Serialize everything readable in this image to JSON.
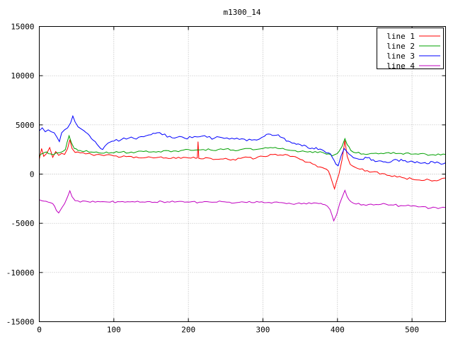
{
  "chart_data": {
    "type": "line",
    "title": "m1300_14",
    "xlabel": "",
    "ylabel": "",
    "xlim": [
      0,
      545
    ],
    "ylim": [
      -15000,
      15000
    ],
    "x_ticks": [
      0,
      100,
      200,
      300,
      400,
      500
    ],
    "y_ticks": [
      -15000,
      -10000,
      -5000,
      0,
      5000,
      10000,
      15000
    ],
    "grid": true,
    "legend_position": "top-right",
    "background_color": "#ffffff",
    "border_color": "#000000",
    "grid_color": "#9a9a9a",
    "series": [
      {
        "name": "line 1",
        "color": "#ff0000",
        "noise": 120,
        "points": [
          [
            0,
            1500
          ],
          [
            3,
            2600
          ],
          [
            6,
            1800
          ],
          [
            10,
            2100
          ],
          [
            14,
            2700
          ],
          [
            18,
            1700
          ],
          [
            22,
            2300
          ],
          [
            26,
            1900
          ],
          [
            30,
            2100
          ],
          [
            34,
            2000
          ],
          [
            38,
            2600
          ],
          [
            41,
            3500
          ],
          [
            44,
            2600
          ],
          [
            48,
            2200
          ],
          [
            55,
            2150
          ],
          [
            62,
            2050
          ],
          [
            70,
            2000
          ],
          [
            80,
            2000
          ],
          [
            90,
            1950
          ],
          [
            100,
            1850
          ],
          [
            110,
            1750
          ],
          [
            120,
            1800
          ],
          [
            130,
            1750
          ],
          [
            140,
            1650
          ],
          [
            150,
            1700
          ],
          [
            160,
            1700
          ],
          [
            170,
            1650
          ],
          [
            180,
            1700
          ],
          [
            190,
            1600
          ],
          [
            200,
            1650
          ],
          [
            210,
            1600
          ],
          [
            212,
            1650
          ],
          [
            213,
            3300
          ],
          [
            214,
            1600
          ],
          [
            220,
            1550
          ],
          [
            230,
            1600
          ],
          [
            240,
            1500
          ],
          [
            250,
            1600
          ],
          [
            260,
            1500
          ],
          [
            270,
            1600
          ],
          [
            280,
            1700
          ],
          [
            290,
            1600
          ],
          [
            300,
            1800
          ],
          [
            310,
            2000
          ],
          [
            320,
            1900
          ],
          [
            330,
            2000
          ],
          [
            340,
            1800
          ],
          [
            350,
            1500
          ],
          [
            360,
            1200
          ],
          [
            370,
            950
          ],
          [
            380,
            650
          ],
          [
            388,
            300
          ],
          [
            393,
            -800
          ],
          [
            396,
            -1500
          ],
          [
            399,
            -700
          ],
          [
            402,
            0
          ],
          [
            406,
            1400
          ],
          [
            410,
            3400
          ],
          [
            413,
            1800
          ],
          [
            417,
            1000
          ],
          [
            422,
            750
          ],
          [
            430,
            500
          ],
          [
            440,
            350
          ],
          [
            450,
            250
          ],
          [
            460,
            50
          ],
          [
            470,
            -150
          ],
          [
            480,
            -300
          ],
          [
            490,
            -400
          ],
          [
            500,
            -500
          ],
          [
            510,
            -600
          ],
          [
            520,
            -500
          ],
          [
            530,
            -650
          ],
          [
            540,
            -450
          ],
          [
            545,
            -400
          ]
        ]
      },
      {
        "name": "line 2",
        "color": "#00a000",
        "noise": 110,
        "points": [
          [
            0,
            1800
          ],
          [
            5,
            2100
          ],
          [
            10,
            2250
          ],
          [
            15,
            2050
          ],
          [
            20,
            2000
          ],
          [
            25,
            2150
          ],
          [
            30,
            2250
          ],
          [
            35,
            2500
          ],
          [
            40,
            3900
          ],
          [
            43,
            3200
          ],
          [
            47,
            2600
          ],
          [
            52,
            2400
          ],
          [
            60,
            2300
          ],
          [
            70,
            2250
          ],
          [
            80,
            2150
          ],
          [
            90,
            2250
          ],
          [
            100,
            2150
          ],
          [
            110,
            2250
          ],
          [
            120,
            2150
          ],
          [
            130,
            2250
          ],
          [
            140,
            2300
          ],
          [
            150,
            2250
          ],
          [
            160,
            2300
          ],
          [
            170,
            2400
          ],
          [
            180,
            2350
          ],
          [
            190,
            2400
          ],
          [
            200,
            2500
          ],
          [
            210,
            2450
          ],
          [
            220,
            2500
          ],
          [
            230,
            2450
          ],
          [
            240,
            2500
          ],
          [
            250,
            2550
          ],
          [
            260,
            2450
          ],
          [
            270,
            2500
          ],
          [
            280,
            2600
          ],
          [
            290,
            2500
          ],
          [
            300,
            2600
          ],
          [
            310,
            2700
          ],
          [
            320,
            2600
          ],
          [
            330,
            2500
          ],
          [
            340,
            2400
          ],
          [
            350,
            2300
          ],
          [
            360,
            2250
          ],
          [
            370,
            2300
          ],
          [
            380,
            2200
          ],
          [
            388,
            2050
          ],
          [
            393,
            1850
          ],
          [
            397,
            2000
          ],
          [
            402,
            2300
          ],
          [
            406,
            2800
          ],
          [
            410,
            3600
          ],
          [
            413,
            3000
          ],
          [
            418,
            2400
          ],
          [
            425,
            2150
          ],
          [
            435,
            2050
          ],
          [
            445,
            2100
          ],
          [
            455,
            2050
          ],
          [
            465,
            2150
          ],
          [
            475,
            2200
          ],
          [
            485,
            2100
          ],
          [
            495,
            2150
          ],
          [
            505,
            2050
          ],
          [
            515,
            2100
          ],
          [
            525,
            1950
          ],
          [
            535,
            2050
          ],
          [
            545,
            2000
          ]
        ]
      },
      {
        "name": "line 3",
        "color": "#0000ff",
        "noise": 150,
        "points": [
          [
            0,
            4400
          ],
          [
            4,
            4700
          ],
          [
            8,
            4300
          ],
          [
            12,
            4500
          ],
          [
            16,
            4300
          ],
          [
            20,
            4200
          ],
          [
            24,
            3700
          ],
          [
            27,
            3300
          ],
          [
            30,
            4200
          ],
          [
            34,
            4500
          ],
          [
            38,
            4700
          ],
          [
            42,
            5200
          ],
          [
            45,
            5900
          ],
          [
            48,
            5300
          ],
          [
            52,
            4800
          ],
          [
            56,
            4600
          ],
          [
            60,
            4400
          ],
          [
            65,
            4100
          ],
          [
            70,
            3600
          ],
          [
            75,
            3300
          ],
          [
            80,
            2800
          ],
          [
            85,
            2500
          ],
          [
            90,
            3000
          ],
          [
            95,
            3250
          ],
          [
            100,
            3350
          ],
          [
            110,
            3500
          ],
          [
            120,
            3650
          ],
          [
            130,
            3550
          ],
          [
            140,
            3800
          ],
          [
            150,
            4000
          ],
          [
            158,
            4200
          ],
          [
            165,
            4000
          ],
          [
            175,
            3850
          ],
          [
            185,
            3750
          ],
          [
            195,
            3650
          ],
          [
            205,
            3700
          ],
          [
            215,
            3800
          ],
          [
            225,
            3750
          ],
          [
            235,
            3650
          ],
          [
            245,
            3700
          ],
          [
            255,
            3550
          ],
          [
            265,
            3650
          ],
          [
            275,
            3550
          ],
          [
            285,
            3450
          ],
          [
            295,
            3550
          ],
          [
            302,
            3850
          ],
          [
            310,
            4050
          ],
          [
            318,
            3950
          ],
          [
            326,
            3700
          ],
          [
            334,
            3350
          ],
          [
            342,
            3150
          ],
          [
            350,
            3000
          ],
          [
            358,
            2850
          ],
          [
            366,
            2650
          ],
          [
            374,
            2500
          ],
          [
            382,
            2350
          ],
          [
            388,
            2150
          ],
          [
            393,
            1700
          ],
          [
            398,
            1000
          ],
          [
            401,
            850
          ],
          [
            405,
            1900
          ],
          [
            409,
            2600
          ],
          [
            413,
            2250
          ],
          [
            418,
            1900
          ],
          [
            425,
            1600
          ],
          [
            432,
            1500
          ],
          [
            440,
            1650
          ],
          [
            448,
            1450
          ],
          [
            456,
            1350
          ],
          [
            464,
            1250
          ],
          [
            472,
            1250
          ],
          [
            480,
            1450
          ],
          [
            488,
            1350
          ],
          [
            496,
            1250
          ],
          [
            504,
            1150
          ],
          [
            512,
            1100
          ],
          [
            520,
            1050
          ],
          [
            528,
            1250
          ],
          [
            536,
            1150
          ],
          [
            545,
            1150
          ]
        ]
      },
      {
        "name": "line 4",
        "color": "#c000c0",
        "noise": 110,
        "points": [
          [
            0,
            -2600
          ],
          [
            6,
            -2750
          ],
          [
            12,
            -2850
          ],
          [
            18,
            -3000
          ],
          [
            23,
            -3700
          ],
          [
            26,
            -3950
          ],
          [
            30,
            -3450
          ],
          [
            34,
            -3000
          ],
          [
            38,
            -2300
          ],
          [
            41,
            -1700
          ],
          [
            44,
            -2300
          ],
          [
            48,
            -2700
          ],
          [
            55,
            -2850
          ],
          [
            65,
            -2800
          ],
          [
            75,
            -2850
          ],
          [
            85,
            -2800
          ],
          [
            95,
            -2850
          ],
          [
            105,
            -2800
          ],
          [
            115,
            -2850
          ],
          [
            125,
            -2800
          ],
          [
            135,
            -2850
          ],
          [
            145,
            -2800
          ],
          [
            155,
            -2850
          ],
          [
            165,
            -2800
          ],
          [
            175,
            -2850
          ],
          [
            185,
            -2800
          ],
          [
            195,
            -2850
          ],
          [
            205,
            -2800
          ],
          [
            215,
            -2850
          ],
          [
            225,
            -2800
          ],
          [
            235,
            -2850
          ],
          [
            245,
            -2800
          ],
          [
            255,
            -2850
          ],
          [
            265,
            -2900
          ],
          [
            275,
            -2850
          ],
          [
            285,
            -2900
          ],
          [
            295,
            -2850
          ],
          [
            305,
            -2900
          ],
          [
            315,
            -2850
          ],
          [
            325,
            -2900
          ],
          [
            335,
            -2950
          ],
          [
            345,
            -3000
          ],
          [
            355,
            -2950
          ],
          [
            365,
            -3000
          ],
          [
            375,
            -3000
          ],
          [
            383,
            -3100
          ],
          [
            390,
            -3600
          ],
          [
            395,
            -4750
          ],
          [
            399,
            -4100
          ],
          [
            403,
            -3000
          ],
          [
            407,
            -2200
          ],
          [
            410,
            -1650
          ],
          [
            413,
            -2300
          ],
          [
            418,
            -2800
          ],
          [
            425,
            -3050
          ],
          [
            435,
            -3100
          ],
          [
            445,
            -3050
          ],
          [
            455,
            -3100
          ],
          [
            465,
            -3050
          ],
          [
            475,
            -3150
          ],
          [
            485,
            -3200
          ],
          [
            495,
            -3150
          ],
          [
            505,
            -3250
          ],
          [
            515,
            -3300
          ],
          [
            525,
            -3450
          ],
          [
            535,
            -3500
          ],
          [
            545,
            -3400
          ]
        ]
      }
    ]
  }
}
